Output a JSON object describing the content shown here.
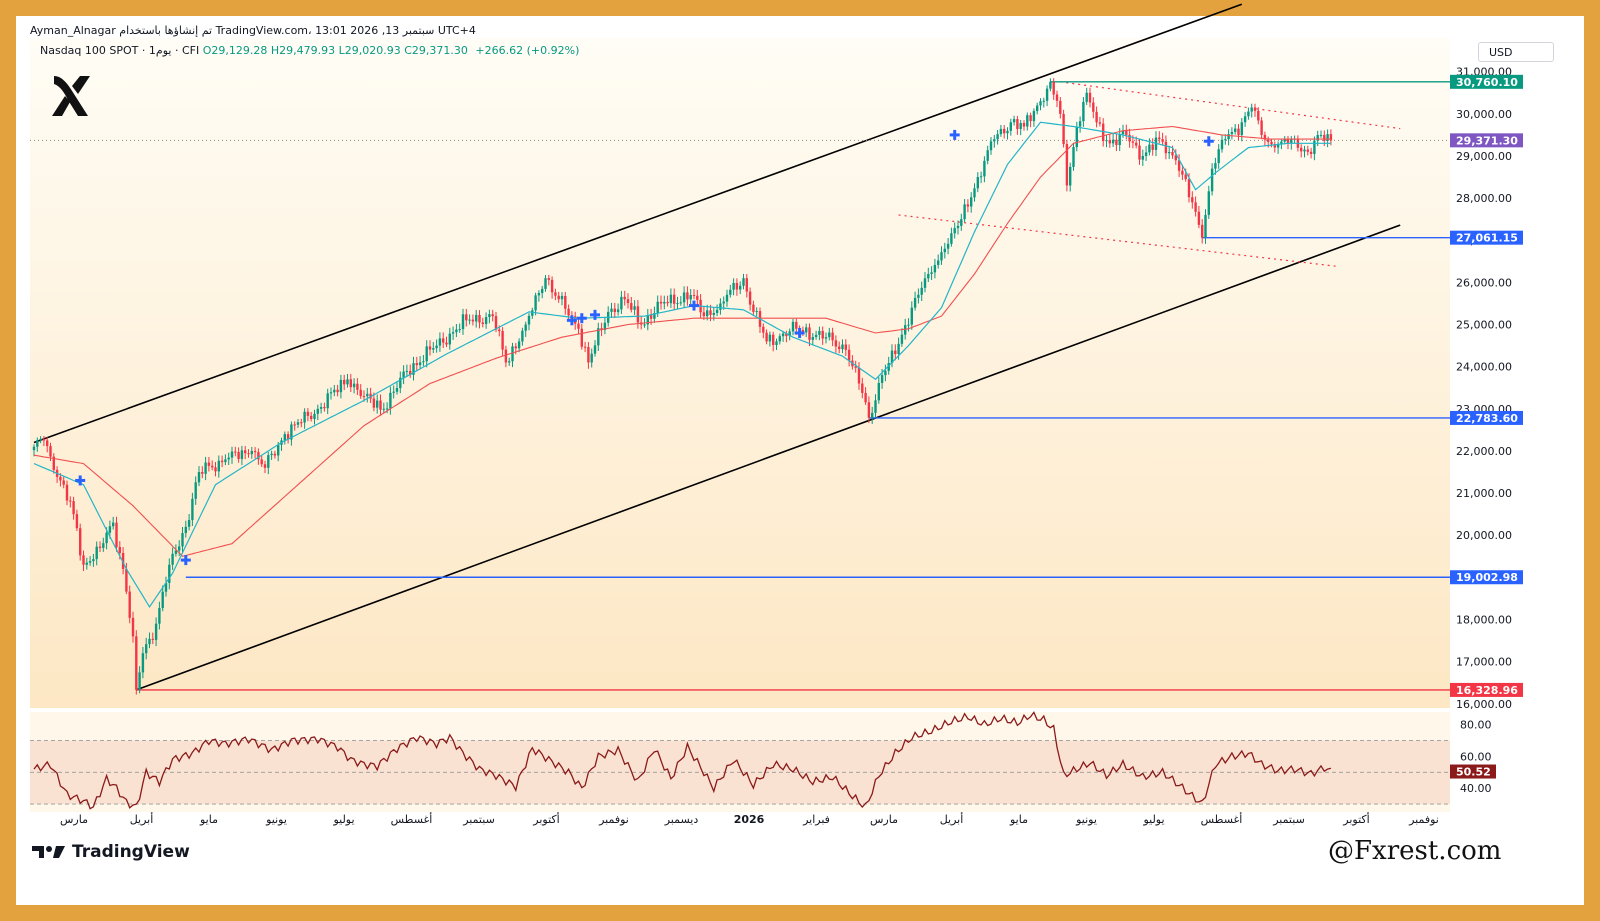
{
  "header": {
    "author_line": "Ayman_Alnagar تم إنشاؤها باستخدام TradingView.com، 13:01 2026 ,13 سبتمبر UTC+4",
    "symbol": "Nasdaq 100 SPOT · 1يوم · CFI",
    "open": "O29,129.28",
    "high": "H29,479.93",
    "low": "L29,020.93",
    "close": "C29,371.30",
    "change": "+266.62 (+0.92%)",
    "currency": "USD"
  },
  "branding": {
    "tv_label": "TradingView",
    "watermark": "@Fxrest.com",
    "logo_icon": "x-logo-icon"
  },
  "colors": {
    "frame": "#e3a23e",
    "bull": "#089981",
    "bear": "#f23645",
    "ma_fast": "#22b5c8",
    "ma_slow": "#f05050",
    "support_line": "#2962ff",
    "resistance_line": "#089981",
    "bottom_line": "#f23645",
    "channel": "#000000",
    "rsi": "#8b1a1a",
    "current_price": "#7e57c2"
  },
  "chart_data": {
    "type": "candlestick",
    "instrument": "Nasdaq 100 SPOT",
    "timeframe": "1D",
    "y_axis": {
      "range": [
        15900,
        31800
      ],
      "ticks": [
        16000,
        17000,
        18000,
        19000,
        20000,
        21000,
        22000,
        23000,
        24000,
        25000,
        26000,
        27000,
        28000,
        29000,
        30000,
        31000
      ],
      "tick_labels": [
        "16,000.00",
        "17,000.00",
        "18,000.00",
        "19,000.00",
        "20,000.00",
        "21,000.00",
        "22,000.00",
        "23,000.00",
        "24,000.00",
        "25,000.00",
        "26,000.00",
        "27,000.00",
        "28,000.00",
        "29,000.00",
        "30,000.00",
        "31,000.00"
      ]
    },
    "x_axis": {
      "tick_labels": [
        "مارس",
        "أبريل",
        "مايو",
        "يونيو",
        "يوليو",
        "أغسطس",
        "سبتمبر",
        "أكتوبر",
        "نوفمبر",
        "ديسمبر",
        "2026",
        "فبراير",
        "مارس",
        "أبريل",
        "مايو",
        "يونيو",
        "يوليو",
        "أغسطس",
        "سبتمبر",
        "أكتوبر",
        "نوفمبر"
      ]
    },
    "price_path": [
      [
        0,
        22100
      ],
      [
        3,
        22250
      ],
      [
        8,
        21300
      ],
      [
        12,
        20500
      ],
      [
        15,
        19300
      ],
      [
        20,
        19700
      ],
      [
        24,
        20300
      ],
      [
        27,
        19200
      ],
      [
        30,
        17600
      ],
      [
        31,
        16330
      ],
      [
        33,
        17200
      ],
      [
        37,
        17900
      ],
      [
        41,
        19300
      ],
      [
        46,
        20200
      ],
      [
        50,
        21500
      ],
      [
        58,
        21800
      ],
      [
        66,
        22000
      ],
      [
        70,
        21600
      ],
      [
        76,
        22400
      ],
      [
        86,
        23000
      ],
      [
        95,
        23700
      ],
      [
        100,
        23300
      ],
      [
        106,
        23000
      ],
      [
        113,
        23900
      ],
      [
        122,
        24500
      ],
      [
        131,
        25100
      ],
      [
        139,
        25200
      ],
      [
        143,
        24100
      ],
      [
        149,
        25000
      ],
      [
        155,
        26100
      ],
      [
        159,
        25600
      ],
      [
        165,
        24900
      ],
      [
        168,
        24100
      ],
      [
        174,
        25300
      ],
      [
        179,
        25600
      ],
      [
        184,
        25000
      ],
      [
        190,
        25500
      ],
      [
        199,
        25700
      ],
      [
        203,
        25200
      ],
      [
        208,
        25500
      ],
      [
        215,
        26100
      ],
      [
        218,
        25300
      ],
      [
        222,
        24600
      ],
      [
        231,
        24900
      ],
      [
        240,
        24700
      ],
      [
        246,
        24400
      ],
      [
        250,
        23600
      ],
      [
        253,
        22790
      ],
      [
        257,
        23800
      ],
      [
        261,
        24300
      ],
      [
        266,
        25400
      ],
      [
        271,
        26200
      ],
      [
        276,
        26800
      ],
      [
        281,
        27500
      ],
      [
        286,
        28500
      ],
      [
        291,
        29400
      ],
      [
        296,
        29800
      ],
      [
        300,
        29700
      ],
      [
        305,
        30300
      ],
      [
        308,
        30760
      ],
      [
        311,
        30000
      ],
      [
        313,
        28300
      ],
      [
        316,
        29700
      ],
      [
        319,
        30500
      ],
      [
        322,
        29800
      ],
      [
        326,
        29300
      ],
      [
        331,
        29500
      ],
      [
        336,
        29000
      ],
      [
        341,
        29400
      ],
      [
        346,
        28900
      ],
      [
        351,
        27900
      ],
      [
        354,
        27061
      ],
      [
        357,
        28700
      ],
      [
        361,
        29400
      ],
      [
        366,
        29800
      ],
      [
        369,
        30150
      ],
      [
        372,
        29500
      ],
      [
        376,
        29200
      ],
      [
        381,
        29400
      ],
      [
        386,
        29100
      ],
      [
        390,
        29500
      ],
      [
        393,
        29371
      ]
    ],
    "ma_fast_path": [
      [
        0,
        21700
      ],
      [
        15,
        21200
      ],
      [
        28,
        19200
      ],
      [
        35,
        18300
      ],
      [
        42,
        19100
      ],
      [
        55,
        21200
      ],
      [
        75,
        22200
      ],
      [
        100,
        23200
      ],
      [
        125,
        24300
      ],
      [
        150,
        25300
      ],
      [
        165,
        25150
      ],
      [
        185,
        25200
      ],
      [
        200,
        25450
      ],
      [
        215,
        25350
      ],
      [
        230,
        24700
      ],
      [
        245,
        24250
      ],
      [
        255,
        23700
      ],
      [
        265,
        24500
      ],
      [
        275,
        25400
      ],
      [
        285,
        27200
      ],
      [
        295,
        28800
      ],
      [
        305,
        29800
      ],
      [
        315,
        29700
      ],
      [
        330,
        29500
      ],
      [
        345,
        29200
      ],
      [
        352,
        28200
      ],
      [
        358,
        28600
      ],
      [
        368,
        29200
      ],
      [
        380,
        29300
      ],
      [
        393,
        29300
      ]
    ],
    "ma_slow_path": [
      [
        0,
        21900
      ],
      [
        15,
        21700
      ],
      [
        30,
        20700
      ],
      [
        45,
        19500
      ],
      [
        60,
        19800
      ],
      [
        80,
        21200
      ],
      [
        100,
        22600
      ],
      [
        120,
        23600
      ],
      [
        140,
        24200
      ],
      [
        160,
        24700
      ],
      [
        180,
        25000
      ],
      [
        200,
        25150
      ],
      [
        220,
        25150
      ],
      [
        240,
        25150
      ],
      [
        255,
        24800
      ],
      [
        265,
        24900
      ],
      [
        275,
        25200
      ],
      [
        285,
        26200
      ],
      [
        295,
        27400
      ],
      [
        305,
        28500
      ],
      [
        315,
        29300
      ],
      [
        330,
        29600
      ],
      [
        345,
        29700
      ],
      [
        360,
        29500
      ],
      [
        375,
        29400
      ],
      [
        393,
        29400
      ]
    ],
    "horizontal_levels": [
      {
        "value": 30760.1,
        "label": "30,760.10",
        "from_index": 308,
        "color": "#089981"
      },
      {
        "value": 29371.3,
        "label": "29,371.30",
        "from_index": 0,
        "color": "#7e57c2",
        "dotted": true
      },
      {
        "value": 27061.15,
        "label": "27,061.15",
        "from_index": 354,
        "color": "#2962ff"
      },
      {
        "value": 22783.6,
        "label": "22,783.60",
        "from_index": 253,
        "color": "#2962ff"
      },
      {
        "value": 19002.98,
        "label": "19,002.98",
        "from_index": 46,
        "color": "#2962ff"
      },
      {
        "value": 16328.96,
        "label": "16,328.96",
        "from_index": 31,
        "color": "#f23645"
      }
    ],
    "channel_upper": [
      [
        0,
        22200
      ],
      [
        366,
        32600
      ]
    ],
    "channel_lower": [
      [
        31,
        16330
      ],
      [
        414,
        27360
      ]
    ],
    "wedge_upper": [
      [
        311,
        30760
      ],
      [
        414,
        29650
      ]
    ],
    "wedge_lower": [
      [
        262,
        27600
      ],
      [
        395,
        26380
      ]
    ],
    "crossover_markers": [
      [
        14,
        21300
      ],
      [
        46,
        19410
      ],
      [
        163,
        25100
      ],
      [
        166,
        25150
      ],
      [
        170,
        25230
      ],
      [
        200,
        25450
      ],
      [
        232,
        24800
      ],
      [
        279,
        29500
      ],
      [
        356,
        29350
      ]
    ],
    "rsi": {
      "range": [
        25,
        88
      ],
      "levels": [
        30,
        50,
        70
      ],
      "ticks": [
        40,
        60,
        80
      ],
      "tick_labels": [
        "40.00",
        "60.00",
        "80.00"
      ],
      "current_label": "50.52",
      "path": [
        [
          0,
          52
        ],
        [
          5,
          55
        ],
        [
          10,
          36
        ],
        [
          15,
          32
        ],
        [
          18,
          28
        ],
        [
          22,
          46
        ],
        [
          25,
          40
        ],
        [
          28,
          31
        ],
        [
          31,
          28
        ],
        [
          34,
          50
        ],
        [
          38,
          44
        ],
        [
          42,
          58
        ],
        [
          48,
          62
        ],
        [
          53,
          70
        ],
        [
          58,
          68
        ],
        [
          65,
          71
        ],
        [
          72,
          64
        ],
        [
          78,
          70
        ],
        [
          86,
          71
        ],
        [
          92,
          66
        ],
        [
          96,
          58
        ],
        [
          100,
          55
        ],
        [
          104,
          54
        ],
        [
          110,
          65
        ],
        [
          116,
          72
        ],
        [
          122,
          68
        ],
        [
          126,
          72
        ],
        [
          130,
          62
        ],
        [
          135,
          52
        ],
        [
          140,
          48
        ],
        [
          146,
          41
        ],
        [
          151,
          65
        ],
        [
          156,
          58
        ],
        [
          162,
          50
        ],
        [
          166,
          40
        ],
        [
          171,
          60
        ],
        [
          177,
          64
        ],
        [
          183,
          44
        ],
        [
          188,
          65
        ],
        [
          193,
          46
        ],
        [
          198,
          66
        ],
        [
          203,
          50
        ],
        [
          206,
          40
        ],
        [
          212,
          58
        ],
        [
          218,
          42
        ],
        [
          224,
          55
        ],
        [
          230,
          52
        ],
        [
          236,
          44
        ],
        [
          242,
          47
        ],
        [
          248,
          35
        ],
        [
          252,
          28
        ],
        [
          256,
          48
        ],
        [
          261,
          62
        ],
        [
          266,
          72
        ],
        [
          272,
          76
        ],
        [
          278,
          82
        ],
        [
          283,
          85
        ],
        [
          288,
          80
        ],
        [
          293,
          84
        ],
        [
          298,
          81
        ],
        [
          302,
          86
        ],
        [
          306,
          83
        ],
        [
          309,
          77
        ],
        [
          312,
          48
        ],
        [
          316,
          52
        ],
        [
          320,
          56
        ],
        [
          325,
          48
        ],
        [
          330,
          55
        ],
        [
          336,
          47
        ],
        [
          342,
          50
        ],
        [
          347,
          42
        ],
        [
          351,
          35
        ],
        [
          354,
          30
        ],
        [
          358,
          55
        ],
        [
          363,
          60
        ],
        [
          368,
          62
        ],
        [
          372,
          55
        ],
        [
          377,
          51
        ],
        [
          382,
          52
        ],
        [
          387,
          49
        ],
        [
          391,
          53
        ],
        [
          393,
          50.5
        ]
      ]
    }
  }
}
